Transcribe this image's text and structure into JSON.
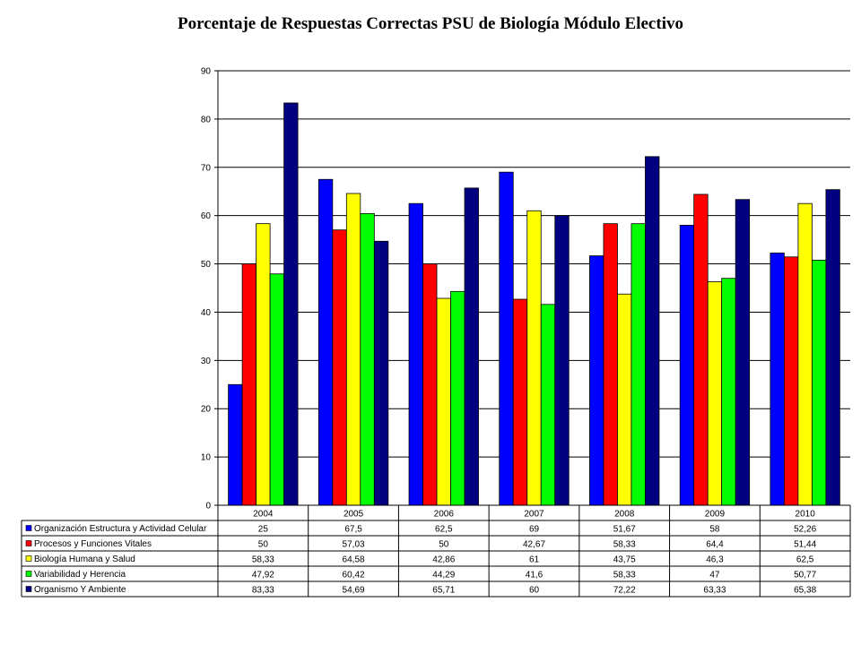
{
  "chart_data": {
    "type": "bar",
    "title": "Porcentaje de Respuestas Correctas PSU de Biología  Módulo Electivo",
    "categories": [
      "2004",
      "2005",
      "2006",
      "2007",
      "2008",
      "2009",
      "2010"
    ],
    "ylim": [
      0,
      90
    ],
    "yticks": [
      0,
      10,
      20,
      30,
      40,
      50,
      60,
      70,
      80,
      90
    ],
    "grid": true,
    "legend": "data-table-below",
    "series": [
      {
        "name": "Organización Estructura y Actividad Celular",
        "color": "#0000FF",
        "values": [
          25,
          67.5,
          62.5,
          69,
          51.67,
          58,
          52.26
        ],
        "labels": [
          "25",
          "67,5",
          "62,5",
          "69",
          "51,67",
          "58",
          "52,26"
        ]
      },
      {
        "name": "Procesos y Funciones Vitales",
        "color": "#FF0000",
        "values": [
          50,
          57.03,
          50,
          42.67,
          58.33,
          64.4,
          51.44
        ],
        "labels": [
          "50",
          "57,03",
          "50",
          "42,67",
          "58,33",
          "64,4",
          "51,44"
        ]
      },
      {
        "name": "Biología Humana y Salud",
        "color": "#FFFF00",
        "values": [
          58.33,
          64.58,
          42.86,
          61,
          43.75,
          46.3,
          62.5
        ],
        "labels": [
          "58,33",
          "64,58",
          "42,86",
          "61",
          "43,75",
          "46,3",
          "62,5"
        ]
      },
      {
        "name": "Variabilidad y Herencia",
        "color": "#00FF00",
        "values": [
          47.92,
          60.42,
          44.29,
          41.6,
          58.33,
          47,
          50.77
        ],
        "labels": [
          "47,92",
          "60,42",
          "44,29",
          "41,6",
          "58,33",
          "47",
          "50,77"
        ]
      },
      {
        "name": "Organismo Y Ambiente",
        "color": "#000080",
        "values": [
          83.33,
          54.69,
          65.71,
          60,
          72.22,
          63.33,
          65.38
        ],
        "labels": [
          "83,33",
          "54,69",
          "65,71",
          "60",
          "72,22",
          "63,33",
          "65,38"
        ]
      }
    ]
  }
}
